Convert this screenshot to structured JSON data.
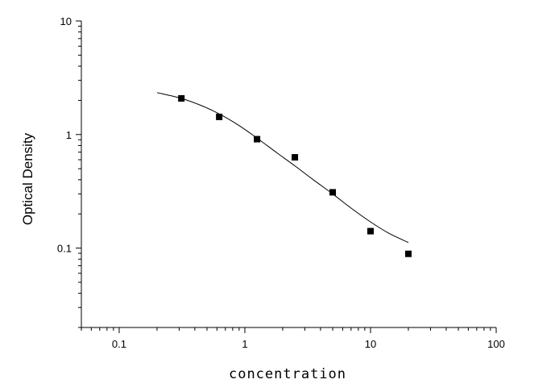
{
  "chart_data": {
    "type": "scatter",
    "title": "",
    "xlabel": "concentration",
    "ylabel": "Optical Density",
    "xscale": "log",
    "yscale": "log",
    "xlim": [
      0.05,
      100
    ],
    "ylim": [
      0.02,
      10
    ],
    "xticks": [
      {
        "v": 0.1,
        "label": "0.1"
      },
      {
        "v": 1,
        "label": "1"
      },
      {
        "v": 10,
        "label": "10"
      },
      {
        "v": 100,
        "label": "100"
      }
    ],
    "yticks": [
      {
        "v": 0.1,
        "label": "0.1"
      },
      {
        "v": 1,
        "label": "1"
      },
      {
        "v": 10,
        "label": "10"
      }
    ],
    "grid": false,
    "marker_color": "#000000",
    "points": [
      {
        "x": 0.3125,
        "y": 2.08
      },
      {
        "x": 0.625,
        "y": 1.43
      },
      {
        "x": 1.25,
        "y": 0.91
      },
      {
        "x": 2.5,
        "y": 0.63
      },
      {
        "x": 5,
        "y": 0.31
      },
      {
        "x": 10,
        "y": 0.141
      },
      {
        "x": 20,
        "y": 0.089
      }
    ],
    "fit_curve": [
      {
        "x": 0.2,
        "y": 2.34
      },
      {
        "x": 0.3125,
        "y": 2.08
      },
      {
        "x": 0.45,
        "y": 1.8
      },
      {
        "x": 0.625,
        "y": 1.52
      },
      {
        "x": 0.9,
        "y": 1.2
      },
      {
        "x": 1.25,
        "y": 0.93
      },
      {
        "x": 1.8,
        "y": 0.69
      },
      {
        "x": 2.5,
        "y": 0.53
      },
      {
        "x": 3.5,
        "y": 0.4
      },
      {
        "x": 5,
        "y": 0.3
      },
      {
        "x": 7,
        "y": 0.225
      },
      {
        "x": 10,
        "y": 0.17
      },
      {
        "x": 14,
        "y": 0.135
      },
      {
        "x": 20,
        "y": 0.112
      }
    ]
  }
}
